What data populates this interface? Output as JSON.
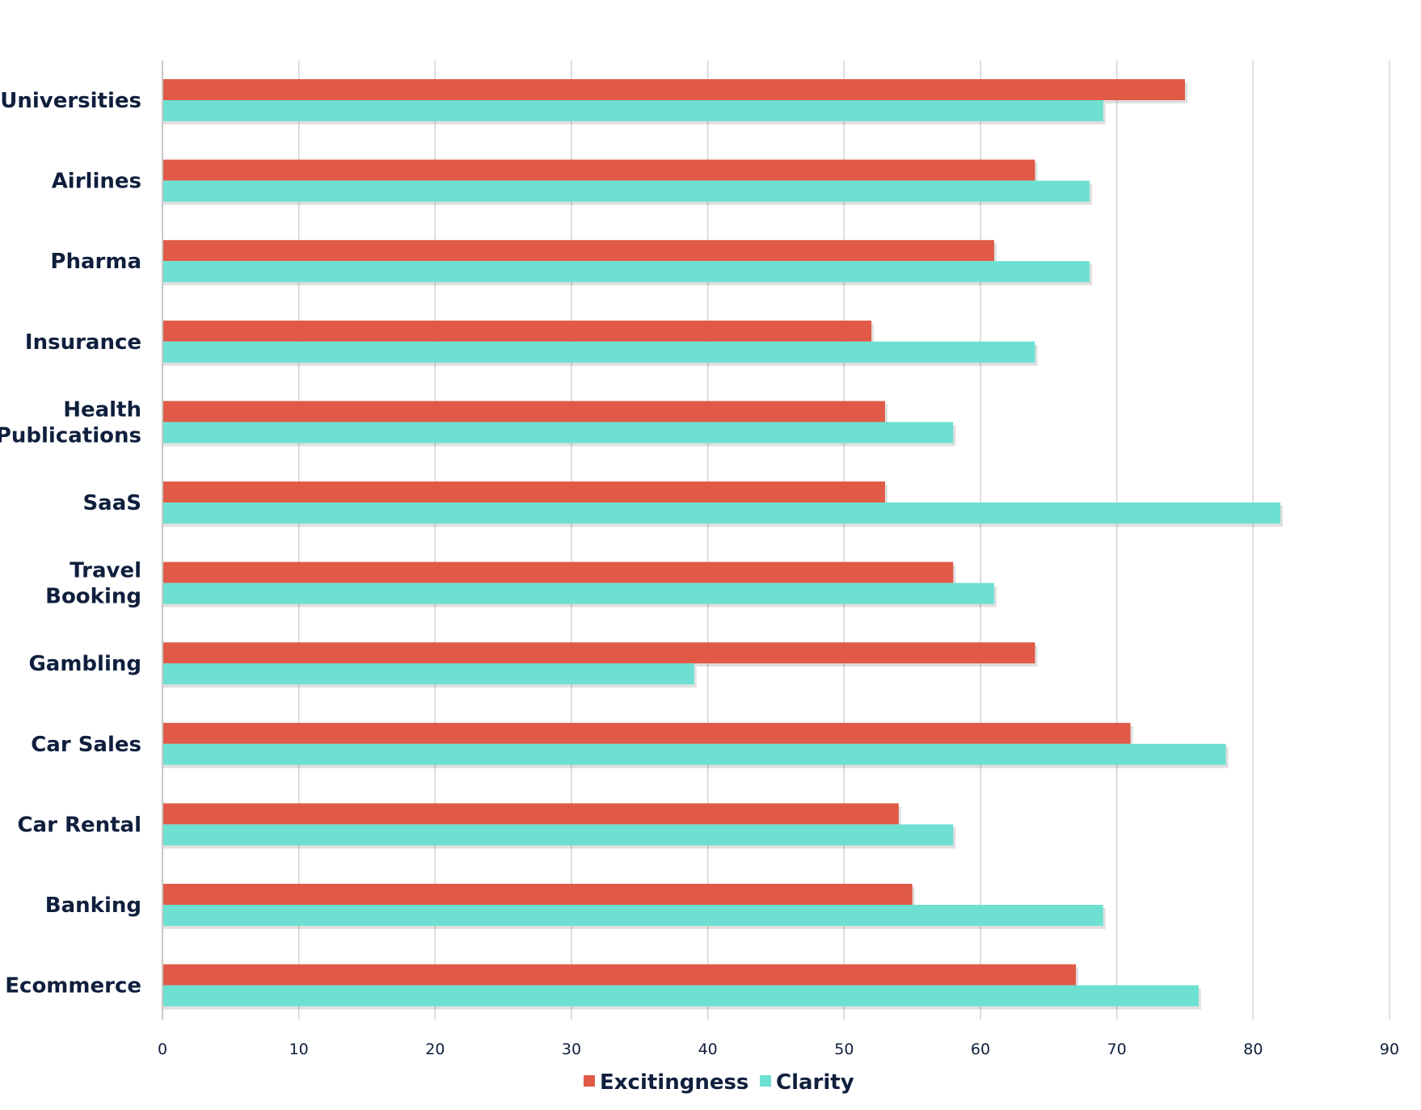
{
  "chart_data": {
    "type": "bar",
    "orientation": "horizontal",
    "categories": [
      "Universities",
      "Airlines",
      "Pharma",
      "Insurance",
      "Health Publications",
      "SaaS",
      "Travel Booking",
      "Gambling",
      "Car Sales",
      "Car Rental",
      "Banking",
      "Ecommerce"
    ],
    "category_lines": [
      [
        "Universities"
      ],
      [
        "Airlines"
      ],
      [
        "Pharma"
      ],
      [
        "Insurance"
      ],
      [
        "Health",
        "Publications"
      ],
      [
        "SaaS"
      ],
      [
        "Travel",
        "Booking"
      ],
      [
        "Gambling"
      ],
      [
        "Car Sales"
      ],
      [
        "Car Rental"
      ],
      [
        "Banking"
      ],
      [
        "Ecommerce"
      ]
    ],
    "series": [
      {
        "name": "Excitingness",
        "color": "#e05a47",
        "values": [
          75,
          64,
          61,
          52,
          53,
          53,
          58,
          64,
          71,
          54,
          55,
          67
        ]
      },
      {
        "name": "Clarity",
        "color": "#6de0d1",
        "values": [
          69,
          68,
          68,
          64,
          58,
          82,
          61,
          39,
          78,
          58,
          69,
          76
        ]
      }
    ],
    "xlim": [
      0,
      90
    ],
    "x_ticks": [
      "0",
      "10",
      "20",
      "30",
      "40",
      "50",
      "60",
      "70",
      "80",
      "90"
    ],
    "grid": true,
    "legend_position": "bottom"
  }
}
